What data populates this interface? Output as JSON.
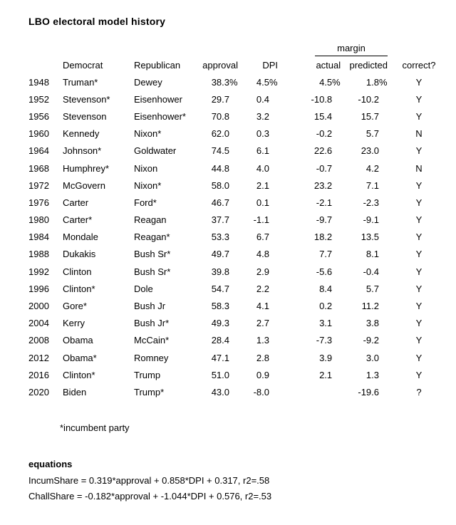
{
  "title": "LBO electoral model history",
  "colors": {
    "text": "#000000",
    "background": "#ffffff"
  },
  "table": {
    "group_header": {
      "margin_label": "margin"
    },
    "columns": {
      "year": "",
      "democrat": "Democrat",
      "republican": "Republican",
      "approval": "approval",
      "dpi": "DPI",
      "actual": "actual",
      "predicted": "predicted",
      "correct": "correct?"
    },
    "rows": [
      {
        "year": "1948",
        "democrat": "Truman*",
        "republican": "Dewey",
        "approval": "38.3%",
        "dpi": "4.5%",
        "actual": "4.5%",
        "predicted": "1.8%",
        "correct": "Y"
      },
      {
        "year": "1952",
        "democrat": "Stevenson*",
        "republican": "Eisenhower",
        "approval": "29.7",
        "dpi": "0.4",
        "actual": "-10.8",
        "predicted": "-10.2",
        "correct": "Y"
      },
      {
        "year": "1956",
        "democrat": "Stevenson",
        "republican": "Eisenhower*",
        "approval": "70.8",
        "dpi": "3.2",
        "actual": "15.4",
        "predicted": "15.7",
        "correct": "Y"
      },
      {
        "year": "1960",
        "democrat": "Kennedy",
        "republican": "Nixon*",
        "approval": "62.0",
        "dpi": "0.3",
        "actual": "-0.2",
        "predicted": "5.7",
        "correct": "N"
      },
      {
        "year": "1964",
        "democrat": "Johnson*",
        "republican": "Goldwater",
        "approval": "74.5",
        "dpi": "6.1",
        "actual": "22.6",
        "predicted": "23.0",
        "correct": "Y"
      },
      {
        "year": "1968",
        "democrat": "Humphrey*",
        "republican": "Nixon",
        "approval": "44.8",
        "dpi": "4.0",
        "actual": "-0.7",
        "predicted": "4.2",
        "correct": "N"
      },
      {
        "year": "1972",
        "democrat": "McGovern",
        "republican": "Nixon*",
        "approval": "58.0",
        "dpi": "2.1",
        "actual": "23.2",
        "predicted": "7.1",
        "correct": "Y"
      },
      {
        "year": "1976",
        "democrat": "Carter",
        "republican": "Ford*",
        "approval": "46.7",
        "dpi": "0.1",
        "actual": "-2.1",
        "predicted": "-2.3",
        "correct": "Y"
      },
      {
        "year": "1980",
        "democrat": "Carter*",
        "republican": "Reagan",
        "approval": "37.7",
        "dpi": "-1.1",
        "actual": "-9.7",
        "predicted": "-9.1",
        "correct": "Y"
      },
      {
        "year": "1984",
        "democrat": "Mondale",
        "republican": "Reagan*",
        "approval": "53.3",
        "dpi": "6.7",
        "actual": "18.2",
        "predicted": "13.5",
        "correct": "Y"
      },
      {
        "year": "1988",
        "democrat": "Dukakis",
        "republican": "Bush Sr*",
        "approval": "49.7",
        "dpi": "4.8",
        "actual": "7.7",
        "predicted": "8.1",
        "correct": "Y"
      },
      {
        "year": "1992",
        "democrat": "Clinton",
        "republican": "Bush Sr*",
        "approval": "39.8",
        "dpi": "2.9",
        "actual": "-5.6",
        "predicted": "-0.4",
        "correct": "Y"
      },
      {
        "year": "1996",
        "democrat": "Clinton*",
        "republican": "Dole",
        "approval": "54.7",
        "dpi": "2.2",
        "actual": "8.4",
        "predicted": "5.7",
        "correct": "Y"
      },
      {
        "year": "2000",
        "democrat": "Gore*",
        "republican": "Bush Jr",
        "approval": "58.3",
        "dpi": "4.1",
        "actual": "0.2",
        "predicted": "11.2",
        "correct": "Y"
      },
      {
        "year": "2004",
        "democrat": "Kerry",
        "republican": "Bush Jr*",
        "approval": "49.3",
        "dpi": "2.7",
        "actual": "3.1",
        "predicted": "3.8",
        "correct": "Y"
      },
      {
        "year": "2008",
        "democrat": "Obama",
        "republican": "McCain*",
        "approval": "28.4",
        "dpi": "1.3",
        "actual": "-7.3",
        "predicted": "-9.2",
        "correct": "Y"
      },
      {
        "year": "2012",
        "democrat": "Obama*",
        "republican": "Romney",
        "approval": "47.1",
        "dpi": "2.8",
        "actual": "3.9",
        "predicted": "3.0",
        "correct": "Y"
      },
      {
        "year": "2016",
        "democrat": "Clinton*",
        "republican": "Trump",
        "approval": "51.0",
        "dpi": "0.9",
        "actual": "2.1",
        "predicted": "1.3",
        "correct": "Y"
      },
      {
        "year": "2020",
        "democrat": "Biden",
        "republican": "Trump*",
        "approval": "43.0",
        "dpi": "-8.0",
        "actual": "",
        "predicted": "-19.6",
        "correct": "?"
      }
    ]
  },
  "footnote": "*incumbent party",
  "equations": {
    "heading": "equations",
    "lines": [
      "IncumShare = 0.319*approval + 0.858*DPI + 0.317, r2=.58",
      "ChallShare = -0.182*approval + -1.044*DPI + 0.576, r2=.53"
    ]
  }
}
